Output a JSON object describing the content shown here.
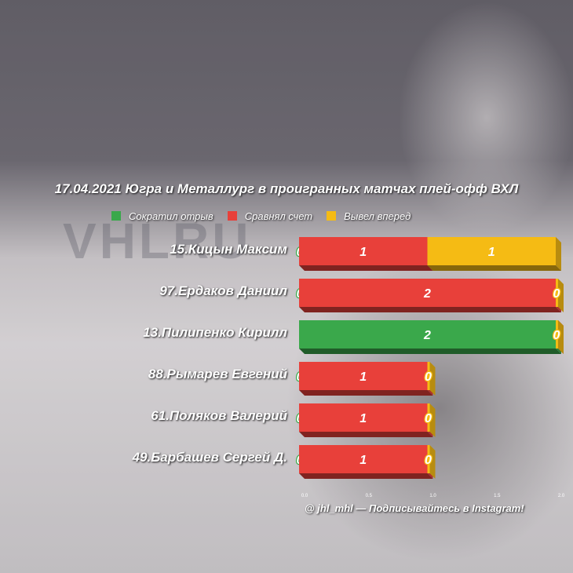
{
  "chart_data": {
    "type": "bar",
    "orientation": "horizontal",
    "stacked": true,
    "title": "17.04.2021 Югра и Металлург в проигранных матчах плей-офф ВХЛ",
    "categories": [
      "15.Кицын Максим",
      "97.Ердаков Даниил",
      "13.Пилипенко Кирилл",
      "88.Рымарев Евгений",
      "61.Поляков Валерий",
      "49.Барбашев Сергей Д."
    ],
    "series": [
      {
        "name": "Сократил отрыв",
        "color": "#3aa84b",
        "values": [
          0,
          0,
          2,
          0,
          0,
          0
        ]
      },
      {
        "name": "Сравнял счет",
        "color": "#e8403a",
        "values": [
          1,
          2,
          0,
          1,
          1,
          1
        ]
      },
      {
        "name": "Вывел вперед",
        "color": "#f5bb14",
        "values": [
          1,
          0,
          0,
          0,
          0,
          0
        ]
      }
    ],
    "xlim": [
      0,
      2
    ],
    "xticks": [
      "0.0",
      "0.5",
      "1.0",
      "1.5",
      "2.0"
    ],
    "legend_position": "top"
  },
  "footer_text": "@ jhl_mhl — Подписывайтесь в Instagram!",
  "background_text": "VHLRU"
}
